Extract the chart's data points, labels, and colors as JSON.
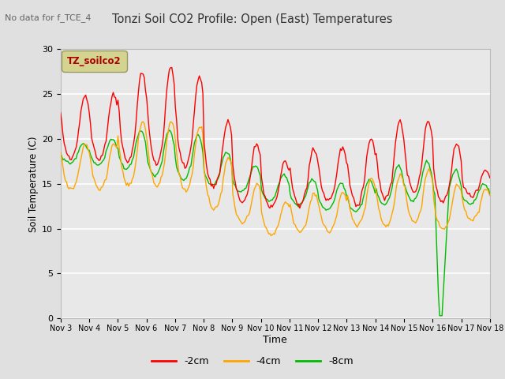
{
  "title": "Tonzi Soil CO2 Profile: Open (East) Temperatures",
  "subtitle": "No data for f_TCE_4",
  "ylabel": "Soil Temperature (C)",
  "xlabel": "Time",
  "legend_label": "TZ_soilco2",
  "series_labels": [
    "-2cm",
    "-4cm",
    "-8cm"
  ],
  "series_colors": [
    "#ff0000",
    "#ffa500",
    "#00bb00"
  ],
  "ylim": [
    0,
    30
  ],
  "yticks": [
    0,
    5,
    10,
    15,
    20,
    25,
    30
  ],
  "xtick_labels": [
    "Nov 3",
    "Nov 4",
    "Nov 5",
    "Nov 6",
    "Nov 7",
    "Nov 8",
    "Nov 9",
    "Nov 10",
    "Nov 11",
    "Nov 12",
    "Nov 13",
    "Nov 14",
    "Nov 15",
    "Nov 16",
    "Nov 17",
    "Nov 18"
  ],
  "bg_color": "#e8e8e8",
  "grid_color": "#ffffff",
  "box_color": "#d4d490",
  "box_text_color": "#aa0000"
}
